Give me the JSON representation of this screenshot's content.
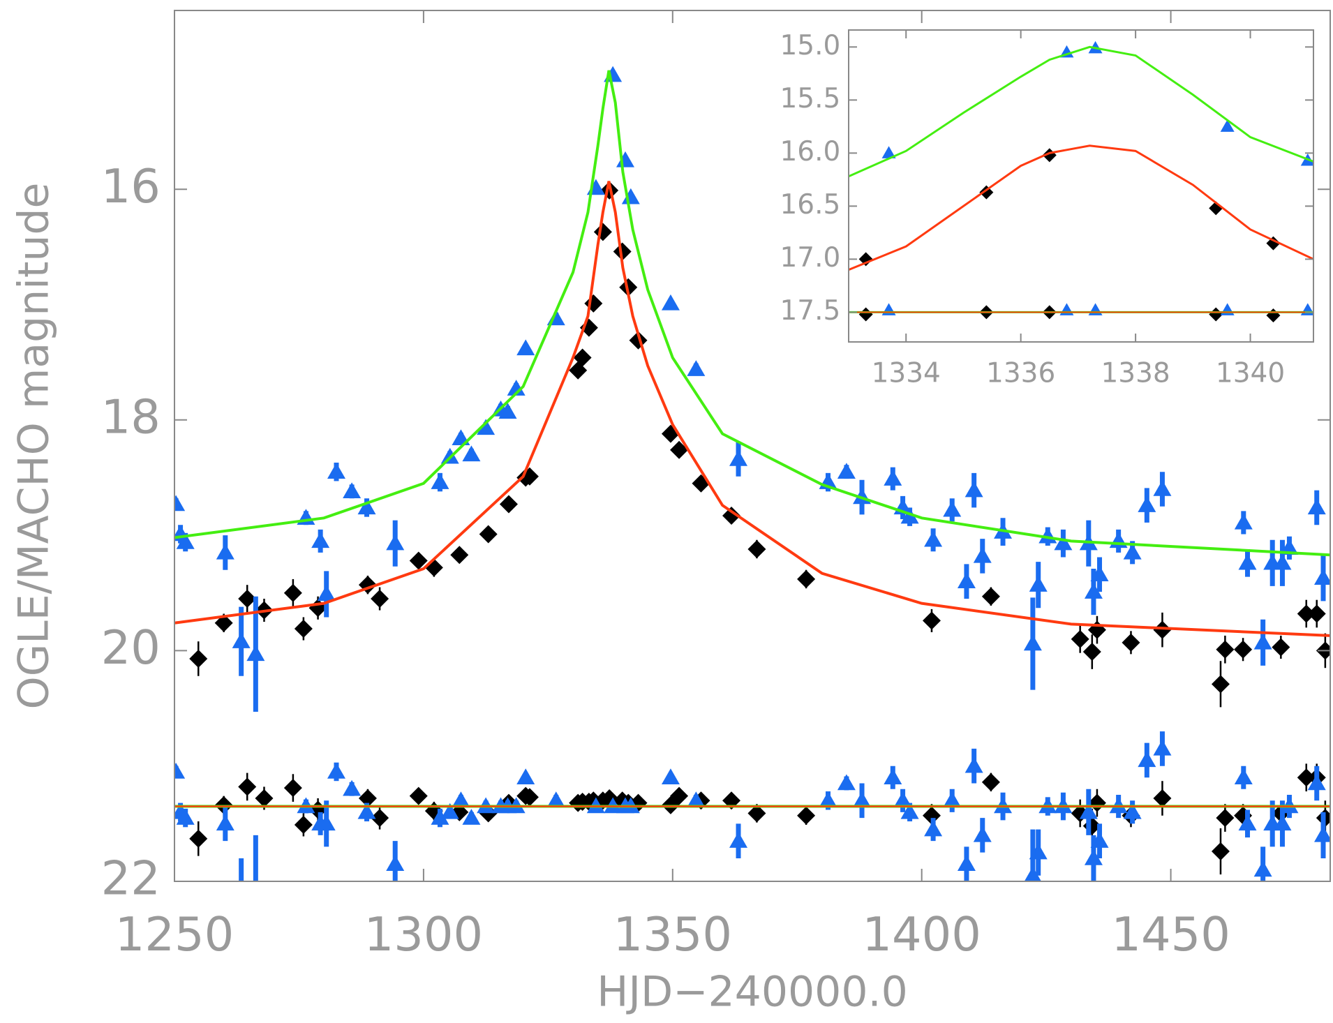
{
  "chart_data": [
    {
      "type": "scatter",
      "xlabel": "HJD−240000.0",
      "ylabel": "OGLE/MACHO magnitude",
      "xlim": [
        1250,
        1482
      ],
      "ylim": [
        22,
        14.45
      ],
      "xticks": [
        1250,
        1300,
        1350,
        1400,
        1450
      ],
      "yticks": [
        16,
        18,
        20,
        22
      ],
      "baseline": 21.35,
      "series": [
        {
          "marker": "diamond",
          "color": "#000000",
          "x": [
            1254.8,
            1259.9,
            1264.6,
            1268.0,
            1273.8,
            1275.9,
            1278.8,
            1288.8,
            1291.2,
            1299.0,
            1302.1,
            1307.2,
            1313.0,
            1317.1,
            1320.5,
            1321.3,
            1331.0,
            1331.9,
            1333.2,
            1334.1,
            1336.0,
            1337.3,
            1339.9,
            1341.1,
            1343.1,
            1349.6,
            1351.3,
            1355.7,
            1361.8,
            1366.9,
            1376.8,
            1402.0,
            1413.9,
            1431.8,
            1434.2,
            1435.2,
            1442.0,
            1448.3,
            1460.0,
            1460.9,
            1464.5,
            1472.1,
            1477.2,
            1479.3,
            1481.0
          ],
          "values": [
            20.07,
            19.76,
            19.55,
            19.65,
            19.5,
            19.81,
            19.63,
            19.43,
            19.55,
            19.22,
            19.28,
            19.17,
            18.99,
            18.73,
            18.5,
            18.49,
            17.57,
            17.46,
            17.2,
            16.99,
            16.37,
            16.01,
            16.54,
            16.85,
            17.31,
            18.12,
            18.26,
            18.55,
            18.83,
            19.12,
            19.38,
            19.74,
            19.53,
            19.9,
            20.01,
            19.82,
            19.93,
            19.82,
            20.29,
            19.99,
            19.99,
            19.97,
            19.68,
            19.68,
            20.0
          ],
          "errors": [
            0.15,
            0.08,
            0.12,
            0.1,
            0.12,
            0.1,
            0.1,
            0.08,
            0.1,
            0.06,
            0.08,
            0.06,
            0.06,
            0.05,
            0.05,
            0.04,
            0.04,
            0.04,
            0.04,
            0.04,
            0.03,
            0.03,
            0.03,
            0.03,
            0.04,
            0.04,
            0.04,
            0.04,
            0.05,
            0.08,
            0.08,
            0.1,
            0.08,
            0.12,
            0.15,
            0.12,
            0.1,
            0.15,
            0.2,
            0.12,
            0.1,
            0.1,
            0.12,
            0.12,
            0.15
          ],
          "residuals": [
            21.63,
            21.34,
            21.18,
            21.28,
            21.19,
            21.51,
            21.38,
            21.28,
            21.45,
            21.26,
            21.39,
            21.4,
            21.41,
            21.32,
            21.26,
            21.27,
            21.32,
            21.31,
            21.31,
            21.3,
            21.3,
            21.28,
            21.3,
            21.32,
            21.32,
            21.34,
            21.26,
            21.3,
            21.3,
            21.41,
            21.43,
            21.43,
            21.14,
            21.41,
            21.52,
            21.32,
            21.43,
            21.28,
            21.74,
            21.45,
            21.43,
            21.41,
            21.1,
            21.1,
            21.45
          ]
        },
        {
          "marker": "triangle",
          "color": "#1a6cf0",
          "x": [
            1250.3,
            1251.2,
            1252.2,
            1260.2,
            1263.4,
            1266.3,
            1276.4,
            1279.3,
            1280.5,
            1282.5,
            1285.6,
            1288.6,
            1294.3,
            1303.3,
            1305.3,
            1307.5,
            1309.6,
            1312.5,
            1315.5,
            1316.9,
            1318.6,
            1320.5,
            1326.6,
            1334.6,
            1338.0,
            1340.5,
            1341.6,
            1349.6,
            1354.7,
            1363.2,
            1381.2,
            1384.9,
            1388.0,
            1394.2,
            1396.2,
            1397.6,
            1402.3,
            1406.1,
            1409.0,
            1410.5,
            1412.2,
            1416.3,
            1422.3,
            1423.4,
            1425.3,
            1428.4,
            1433.5,
            1434.5,
            1435.7,
            1439.5,
            1442.3,
            1445.2,
            1448.3,
            1464.6,
            1465.4,
            1468.5,
            1470.4,
            1472.4,
            1473.8,
            1479.3,
            1480.6
          ],
          "values": [
            18.73,
            18.99,
            19.06,
            19.15,
            19.92,
            20.03,
            18.85,
            19.05,
            19.51,
            18.45,
            18.62,
            18.76,
            19.07,
            18.54,
            18.32,
            18.16,
            18.3,
            18.07,
            17.91,
            17.93,
            17.73,
            17.38,
            17.12,
            15.99,
            15.01,
            15.75,
            16.07,
            16.99,
            17.56,
            18.34,
            18.54,
            18.45,
            18.67,
            18.51,
            18.76,
            18.84,
            19.04,
            18.78,
            19.4,
            18.61,
            19.18,
            18.97,
            19.94,
            19.43,
            19.01,
            19.07,
            19.07,
            19.49,
            19.34,
            19.05,
            19.15,
            18.74,
            18.6,
            18.89,
            19.24,
            19.93,
            19.24,
            19.24,
            19.11,
            18.76,
            19.37
          ],
          "errors": [
            0.05,
            0.08,
            0.08,
            0.15,
            0.3,
            0.5,
            0.06,
            0.1,
            0.2,
            0.08,
            0.06,
            0.08,
            0.2,
            0.08,
            0.05,
            0.05,
            0.05,
            0.05,
            0.05,
            0.05,
            0.05,
            0.04,
            0.05,
            0.04,
            0.04,
            0.04,
            0.04,
            0.04,
            0.05,
            0.15,
            0.08,
            0.06,
            0.15,
            0.1,
            0.1,
            0.08,
            0.1,
            0.1,
            0.15,
            0.15,
            0.15,
            0.12,
            0.4,
            0.2,
            0.08,
            0.12,
            0.2,
            0.2,
            0.15,
            0.1,
            0.1,
            0.15,
            0.15,
            0.1,
            0.12,
            0.2,
            0.2,
            0.2,
            0.1,
            0.15,
            0.2
          ],
          "residuals": [
            21.05,
            21.4,
            21.45,
            21.5,
            22.1,
            22.1,
            21.35,
            21.5,
            21.5,
            21.05,
            21.2,
            21.4,
            21.85,
            21.45,
            21.4,
            21.3,
            21.45,
            21.35,
            21.35,
            21.35,
            21.35,
            21.1,
            21.3,
            21.35,
            21.35,
            21.35,
            21.35,
            21.1,
            21.3,
            21.65,
            21.3,
            21.15,
            21.3,
            21.1,
            21.3,
            21.4,
            21.55,
            21.3,
            21.85,
            21.0,
            21.6,
            21.35,
            21.95,
            21.75,
            21.35,
            21.35,
            21.4,
            21.8,
            21.65,
            21.35,
            21.4,
            20.95,
            20.85,
            21.1,
            21.5,
            21.9,
            21.5,
            21.5,
            21.35,
            21.15,
            21.6
          ]
        }
      ],
      "curves": [
        {
          "color": "#44ee11",
          "x": [
            1250,
            1280,
            1300,
            1320,
            1330,
            1333,
            1335,
            1336,
            1337.2,
            1338.5,
            1340,
            1342,
            1345,
            1350,
            1360,
            1380,
            1400,
            1430,
            1482
          ],
          "values": [
            19.02,
            18.85,
            18.55,
            17.71,
            16.72,
            16.2,
            15.62,
            15.3,
            14.97,
            15.25,
            15.85,
            16.35,
            16.87,
            17.46,
            18.12,
            18.56,
            18.85,
            19.05,
            19.17
          ]
        },
        {
          "color": "#ff3a10",
          "x": [
            1250,
            1280,
            1300,
            1320,
            1330,
            1333,
            1335,
            1336,
            1337.2,
            1338.5,
            1340,
            1342,
            1345,
            1350,
            1360,
            1380,
            1400,
            1430,
            1482
          ],
          "values": [
            19.76,
            19.59,
            19.29,
            18.49,
            17.46,
            17.1,
            16.48,
            16.2,
            15.93,
            16.2,
            16.68,
            17.1,
            17.53,
            18.04,
            18.74,
            19.33,
            19.59,
            19.77,
            19.87
          ]
        }
      ]
    },
    {
      "type": "scatter",
      "xlim": [
        1333,
        1341.1
      ],
      "ylim": [
        17.78,
        14.84
      ],
      "xticks": [
        1334,
        1336,
        1338,
        1340
      ],
      "yticks": [
        {
          "value": 15,
          "label": "15.0"
        },
        15.5,
        {
          "value": 16,
          "label": "16.0"
        },
        16.5,
        {
          "value": 17,
          "label": "17.0"
        },
        17.5
      ],
      "baseline": 17.5,
      "series": [
        {
          "marker": "diamond",
          "color": "#000000",
          "x": [
            1333.3,
            1335.4,
            1336.5,
            1339.4,
            1340.4
          ],
          "values": [
            17.0,
            16.37,
            16.02,
            16.52,
            16.85
          ],
          "residuals": [
            17.52,
            17.5,
            17.5,
            17.52,
            17.53
          ]
        },
        {
          "marker": "triangle",
          "color": "#1a6cf0",
          "x": [
            1333.7,
            1336.8,
            1337.3,
            1339.6,
            1341.0
          ],
          "values": [
            16.0,
            15.05,
            15.01,
            15.75,
            16.07
          ],
          "residuals": [
            17.48,
            17.48,
            17.48,
            17.48,
            17.48
          ]
        }
      ],
      "curves": [
        {
          "color": "#44ee11",
          "x": [
            1333,
            1334,
            1335,
            1336,
            1336.5,
            1337.2,
            1338,
            1339,
            1340,
            1341.1
          ],
          "values": [
            16.22,
            15.98,
            15.62,
            15.28,
            15.12,
            15.0,
            15.08,
            15.45,
            15.85,
            16.08
          ]
        },
        {
          "color": "#ff3a10",
          "x": [
            1333,
            1334,
            1335,
            1336,
            1336.5,
            1337.2,
            1338,
            1339,
            1340,
            1341.1
          ],
          "values": [
            17.1,
            16.88,
            16.5,
            16.12,
            16.0,
            15.93,
            15.98,
            16.3,
            16.72,
            17.0
          ]
        }
      ]
    }
  ]
}
